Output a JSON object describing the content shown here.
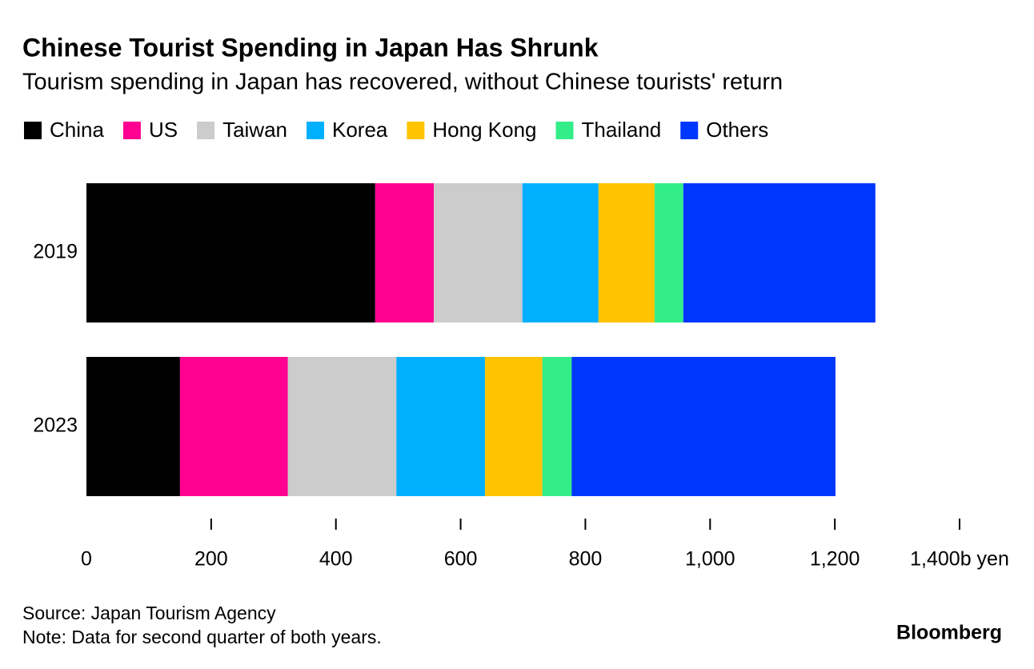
{
  "chart_data": {
    "type": "stacked-bar-horizontal",
    "title": "Chinese Tourist Spending in Japan Has Shrunk",
    "subtitle": "Tourism spending in Japan has recovered, without Chinese tourists' return",
    "categories": [
      "2019",
      "2023"
    ],
    "series": [
      {
        "name": "China",
        "color": "#000000",
        "values": [
          463,
          150
        ]
      },
      {
        "name": "US",
        "color": "#ff0090",
        "values": [
          94,
          173
        ]
      },
      {
        "name": "Taiwan",
        "color": "#cccccc",
        "values": [
          142,
          174
        ]
      },
      {
        "name": "Korea",
        "color": "#00b0ff",
        "values": [
          122,
          142
        ]
      },
      {
        "name": "Hong Kong",
        "color": "#ffc300",
        "values": [
          90,
          92
        ]
      },
      {
        "name": "Thailand",
        "color": "#33ee88",
        "values": [
          46,
          47
        ]
      },
      {
        "name": "Others",
        "color": "#0037ff",
        "values": [
          308,
          423
        ]
      }
    ],
    "xlim": [
      0,
      1400
    ],
    "xticks": [
      0,
      200,
      400,
      600,
      800,
      {
        "value": 1000,
        "label": "1,000"
      },
      {
        "value": 1200,
        "label": "1,200"
      },
      {
        "value": 1400,
        "label": "1,400b yen"
      }
    ],
    "legend": "top-left",
    "source": "Source: Japan Tourism Agency",
    "note": "Note: Data for second quarter of both years.",
    "brand": "Bloomberg"
  }
}
